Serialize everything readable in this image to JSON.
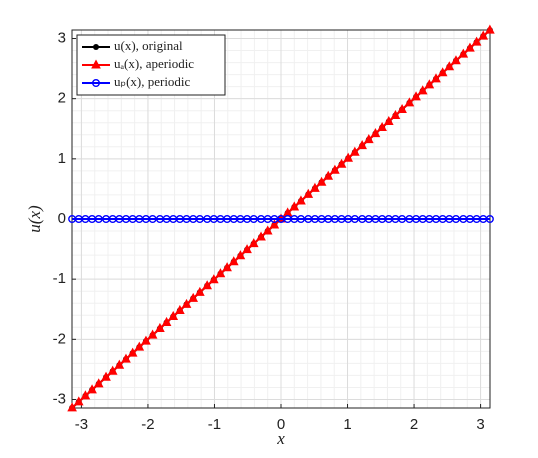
{
  "chart_data": {
    "type": "line",
    "x_label": "x",
    "y_label": "u(x)",
    "x": [
      -3.14,
      -3.04,
      -2.94,
      -2.84,
      -2.74,
      -2.63,
      -2.53,
      -2.43,
      -2.33,
      -2.23,
      -2.13,
      -2.03,
      -1.93,
      -1.82,
      -1.72,
      -1.62,
      -1.52,
      -1.42,
      -1.32,
      -1.22,
      -1.11,
      -1.01,
      -0.91,
      -0.81,
      -0.71,
      -0.61,
      -0.51,
      -0.41,
      -0.3,
      -0.2,
      -0.1,
      0,
      0.1,
      0.2,
      0.3,
      0.41,
      0.51,
      0.61,
      0.71,
      0.81,
      0.91,
      1.01,
      1.11,
      1.22,
      1.32,
      1.42,
      1.52,
      1.62,
      1.72,
      1.82,
      1.93,
      2.03,
      2.13,
      2.23,
      2.33,
      2.43,
      2.53,
      2.63,
      2.74,
      2.84,
      2.94,
      3.04,
      3.14
    ],
    "series": [
      {
        "name": "u(x), original",
        "color": "#000000",
        "marker": "dot",
        "values": [
          -3.14,
          -3.04,
          -2.94,
          -2.84,
          -2.74,
          -2.63,
          -2.53,
          -2.43,
          -2.33,
          -2.23,
          -2.13,
          -2.03,
          -1.93,
          -1.82,
          -1.72,
          -1.62,
          -1.52,
          -1.42,
          -1.32,
          -1.22,
          -1.11,
          -1.01,
          -0.91,
          -0.81,
          -0.71,
          -0.61,
          -0.51,
          -0.41,
          -0.3,
          -0.2,
          -0.1,
          0,
          0.1,
          0.2,
          0.3,
          0.41,
          0.51,
          0.61,
          0.71,
          0.81,
          0.91,
          1.01,
          1.11,
          1.22,
          1.32,
          1.42,
          1.52,
          1.62,
          1.72,
          1.82,
          1.93,
          2.03,
          2.13,
          2.23,
          2.33,
          2.43,
          2.53,
          2.63,
          2.74,
          2.84,
          2.94,
          3.04,
          3.14
        ]
      },
      {
        "name": "uₐ(x), aperiodic",
        "color": "#ff0000",
        "marker": "triangle",
        "values": [
          -3.14,
          -3.04,
          -2.94,
          -2.84,
          -2.74,
          -2.63,
          -2.53,
          -2.43,
          -2.33,
          -2.23,
          -2.13,
          -2.03,
          -1.93,
          -1.82,
          -1.72,
          -1.62,
          -1.52,
          -1.42,
          -1.32,
          -1.22,
          -1.11,
          -1.01,
          -0.91,
          -0.81,
          -0.71,
          -0.61,
          -0.51,
          -0.41,
          -0.3,
          -0.2,
          -0.1,
          0,
          0.1,
          0.2,
          0.3,
          0.41,
          0.51,
          0.61,
          0.71,
          0.81,
          0.91,
          1.01,
          1.11,
          1.22,
          1.32,
          1.42,
          1.52,
          1.62,
          1.72,
          1.82,
          1.93,
          2.03,
          2.13,
          2.23,
          2.33,
          2.43,
          2.53,
          2.63,
          2.74,
          2.84,
          2.94,
          3.04,
          3.14
        ]
      },
      {
        "name": "uₚ(x), periodic",
        "color": "#0000ff",
        "marker": "circle",
        "values": [
          0,
          0,
          0,
          0,
          0,
          0,
          0,
          0,
          0,
          0,
          0,
          0,
          0,
          0,
          0,
          0,
          0,
          0,
          0,
          0,
          0,
          0,
          0,
          0,
          0,
          0,
          0,
          0,
          0,
          0,
          0,
          0,
          0,
          0,
          0,
          0,
          0,
          0,
          0,
          0,
          0,
          0,
          0,
          0,
          0,
          0,
          0,
          0,
          0,
          0,
          0,
          0,
          0,
          0,
          0,
          0,
          0,
          0,
          0,
          0,
          0,
          0,
          0
        ]
      }
    ],
    "xlim": [
      -3.14159,
      3.14159
    ],
    "ylim": [
      -3.14159,
      3.14159
    ],
    "xticks": [
      -3,
      -2,
      -1,
      0,
      1,
      2,
      3
    ],
    "yticks": [
      -3,
      -2,
      -1,
      0,
      1,
      2,
      3
    ],
    "grid": true,
    "minor_grid": true,
    "legend": "upper left"
  }
}
